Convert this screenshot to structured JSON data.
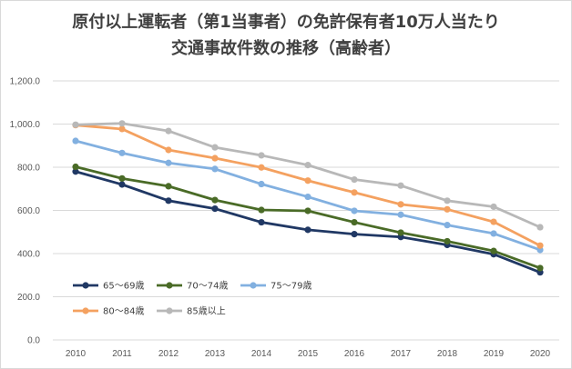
{
  "chart_data": {
    "type": "line",
    "title": [
      "原付以上運転者（第1当事者）の免許保有者10万人当たり",
      "交通事故件数の推移（高齢者）"
    ],
    "xlabel": "",
    "ylabel": "",
    "x": [
      "2010",
      "2011",
      "2012",
      "2013",
      "2014",
      "2015",
      "2016",
      "2017",
      "2018",
      "2019",
      "2020"
    ],
    "ylim": [
      0,
      1200
    ],
    "yticks": [
      "0.0",
      "200.0",
      "400.0",
      "600.0",
      "800.0",
      "1,000.0",
      "1,200.0"
    ],
    "grid": "horizontal",
    "legend_position": "bottom-left",
    "series": [
      {
        "name": "65～69歳",
        "color": "#203864",
        "values": [
          780,
          720,
          645,
          608,
          545,
          510,
          490,
          477,
          440,
          397,
          313
        ]
      },
      {
        "name": "70～74歳",
        "color": "#4a6b27",
        "values": [
          802,
          748,
          712,
          648,
          602,
          598,
          545,
          497,
          457,
          412,
          333
        ]
      },
      {
        "name": "75～79歳",
        "color": "#82b0e0",
        "values": [
          922,
          866,
          820,
          792,
          722,
          663,
          598,
          580,
          532,
          493,
          417
        ]
      },
      {
        "name": "80～84歳",
        "color": "#f4a160",
        "values": [
          995,
          977,
          880,
          842,
          799,
          738,
          683,
          628,
          605,
          547,
          437
        ]
      },
      {
        "name": "85歳以上",
        "color": "#b8b8b8",
        "values": [
          997,
          1003,
          968,
          892,
          855,
          810,
          743,
          715,
          645,
          617,
          522
        ]
      }
    ]
  }
}
